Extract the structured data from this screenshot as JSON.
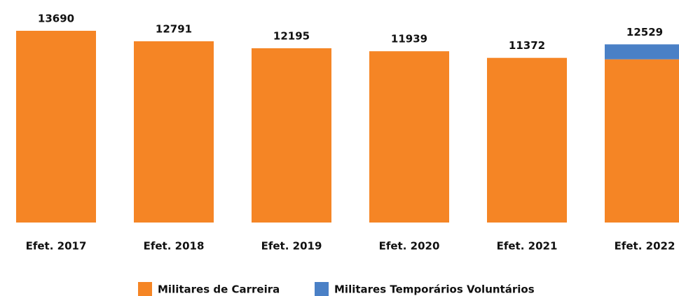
{
  "chart_data": {
    "type": "stacked_bar",
    "categories": [
      "Efet. 2017",
      "Efet. 2018",
      "Efet. 2019",
      "Efet. 2020",
      "Efet. 2021",
      "Efet. 2022"
    ],
    "series": [
      {
        "name": "Militares de Carreira",
        "color": "#f58525",
        "values": [
          13690,
          12791,
          12195,
          11939,
          11372,
          11250
        ]
      },
      {
        "name": "Militares Temporários Voluntários",
        "color": "#4a80c6",
        "values": [
          null,
          null,
          null,
          null,
          null,
          1279
        ]
      }
    ],
    "totals": [
      13690,
      12791,
      12195,
      11939,
      11372,
      12529
    ],
    "ylim": [
      -2728,
      15128
    ],
    "legend": "bottom"
  }
}
